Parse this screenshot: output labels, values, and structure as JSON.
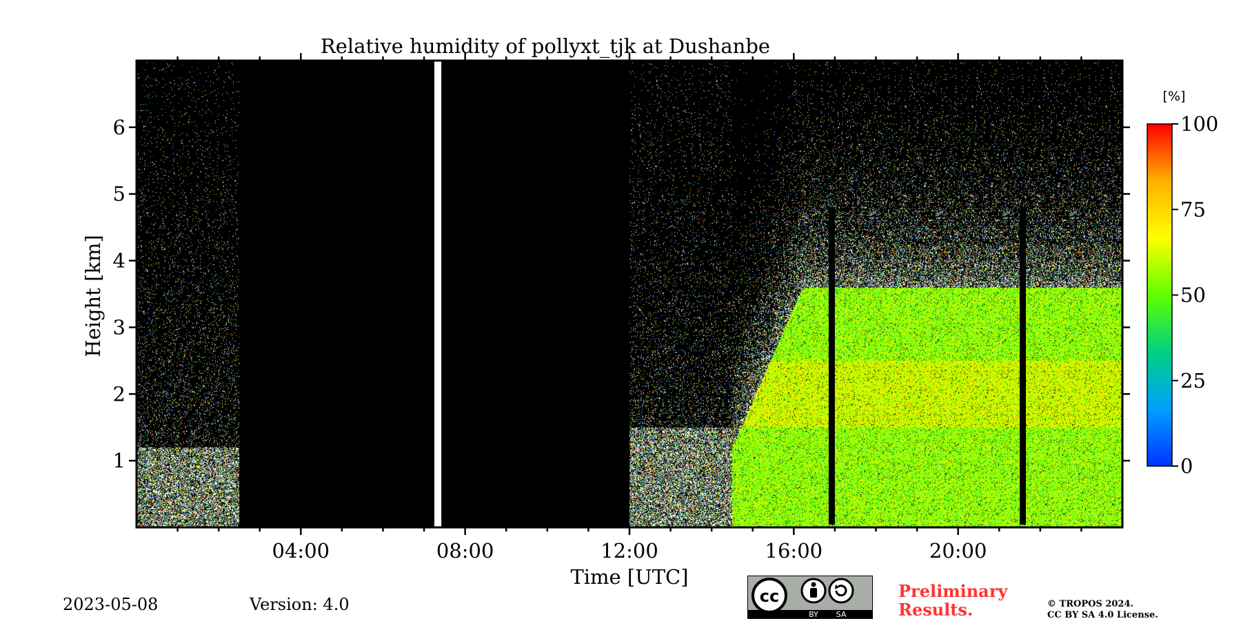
{
  "chart_data": {
    "type": "heatmap",
    "title": "Relative humidity of pollyxt_tjk at Dushanbe",
    "xlabel": "Time [UTC]",
    "ylabel": "Height [km]",
    "xlim_hours": [
      0,
      24
    ],
    "ylim_km": [
      0,
      7
    ],
    "x_ticks": [
      {
        "hour": 4,
        "label": "04:00"
      },
      {
        "hour": 8,
        "label": "08:00"
      },
      {
        "hour": 12,
        "label": "12:00"
      },
      {
        "hour": 16,
        "label": "16:00"
      },
      {
        "hour": 20,
        "label": "20:00"
      }
    ],
    "y_ticks": [
      {
        "km": 1,
        "label": "1"
      },
      {
        "km": 2,
        "label": "2"
      },
      {
        "km": 3,
        "label": "3"
      },
      {
        "km": 4,
        "label": "4"
      },
      {
        "km": 5,
        "label": "5"
      },
      {
        "km": 6,
        "label": "6"
      }
    ],
    "colorbar": {
      "label": "[%]",
      "min": 0,
      "max": 100,
      "ticks": [
        {
          "value": 0,
          "label": "0"
        },
        {
          "value": 25,
          "label": "25"
        },
        {
          "value": 50,
          "label": "50"
        },
        {
          "value": 75,
          "label": "75"
        },
        {
          "value": 100,
          "label": "100"
        }
      ],
      "colormap_stops": [
        "#0033ff",
        "#00a0ff",
        "#00d080",
        "#60ff00",
        "#ffff00",
        "#ffb000",
        "#ff0000"
      ]
    },
    "regions": [
      {
        "name": "night-early",
        "start_h": 0.0,
        "end_h": 2.5,
        "top_km": 1.2,
        "mean_rh": 45,
        "kind": "noisy"
      },
      {
        "name": "no-data-morning",
        "start_h": 2.5,
        "end_h": 12.0,
        "kind": "no-data"
      },
      {
        "name": "gap-white",
        "start_h": 7.25,
        "end_h": 7.42,
        "kind": "missing"
      },
      {
        "name": "afternoon-low",
        "start_h": 12.0,
        "end_h": 14.5,
        "top_km": 1.5,
        "mean_rh": 20,
        "kind": "noisy"
      },
      {
        "name": "evening-layer",
        "start_h": 14.5,
        "end_h": 24.0,
        "top_km": 3.5,
        "mean_rh": 55,
        "kind": "signal"
      }
    ],
    "black_bars": [
      {
        "start_h": 16.85,
        "end_h": 17.0
      },
      {
        "start_h": 21.5,
        "end_h": 21.65
      }
    ]
  },
  "footer": {
    "date": "2023-05-08",
    "version": "Version: 4.0",
    "prelim_line1": "Preliminary",
    "prelim_line2": "Results.",
    "copyright_line1": "© TROPOS 2024.",
    "copyright_line2": "CC BY SA 4.0 License.",
    "cc_text": "cc",
    "cc_by": "BY",
    "cc_sa": "SA"
  },
  "colors": {
    "prelim": "#ff3333",
    "nodata": "#000000",
    "badge_bg": "#a9ada8"
  }
}
